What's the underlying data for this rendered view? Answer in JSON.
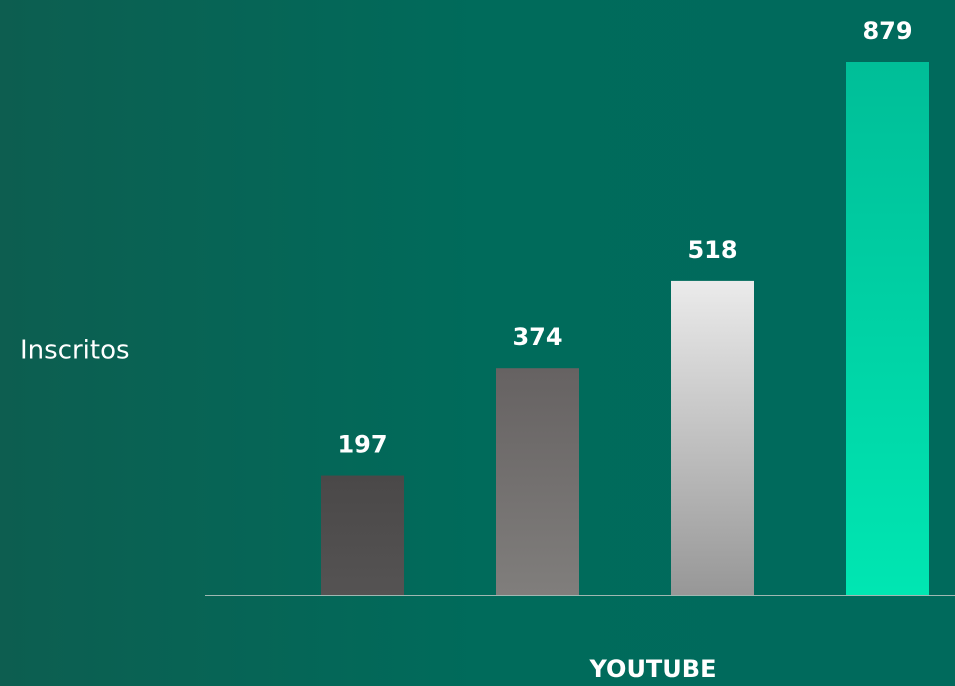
{
  "chart_data": {
    "type": "bar",
    "y_label": "Inscritos",
    "x_label": "YOUTUBE",
    "categories": [
      null,
      null,
      null,
      null
    ],
    "values": [
      197,
      374,
      518,
      879
    ],
    "colors": [
      [
        "#4a4848",
        "#555353"
      ],
      [
        "#666262",
        "#807e7c"
      ],
      [
        "#ebebeb",
        "#979797"
      ],
      [
        "#00be98",
        "#00e6b2"
      ]
    ]
  }
}
